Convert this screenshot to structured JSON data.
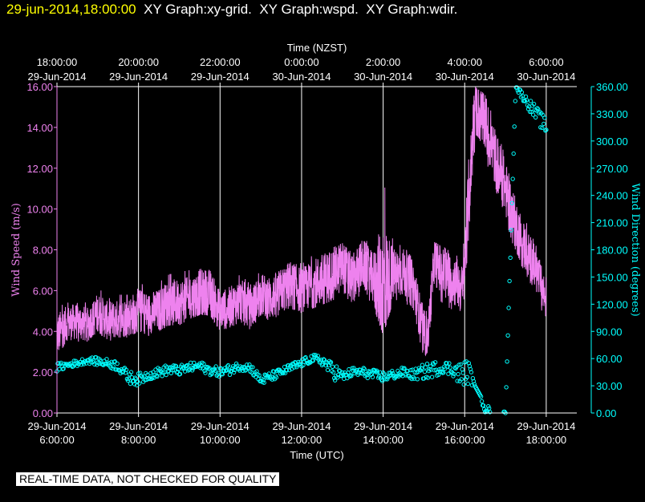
{
  "header": {
    "timestamp": "29-jun-2014,18:00:00",
    "graphs": [
      "XY Graph:xy-grid.",
      "XY Graph:wspd.",
      "XY Graph:wdir."
    ]
  },
  "footer_note": "REAL-TIME DATA, NOT CHECKED FOR QUALITY",
  "colors": {
    "background": "#000000",
    "wind_speed": "#ee82ee",
    "wind_direction": "#00ffff",
    "grid": "#ffffff",
    "header_timestamp": "#ffff00"
  },
  "chart_data": {
    "type": "line",
    "grid": true,
    "top_axis": {
      "label": "Time (NZST)",
      "ticks": [
        {
          "time": "18:00:00",
          "date": "29-Jun-2014"
        },
        {
          "time": "20:00:00",
          "date": "29-Jun-2014"
        },
        {
          "time": "22:00:00",
          "date": "29-Jun-2014"
        },
        {
          "time": "0:00:00",
          "date": "30-Jun-2014"
        },
        {
          "time": "2:00:00",
          "date": "30-Jun-2014"
        },
        {
          "time": "4:00:00",
          "date": "30-Jun-2014"
        },
        {
          "time": "6:00:00",
          "date": "30-Jun-2014"
        }
      ]
    },
    "bottom_axis": {
      "label": "Time (UTC)",
      "range_hours": [
        6,
        18.75
      ],
      "ticks": [
        {
          "hour": 6,
          "date": "29-Jun-2014",
          "time": "6:00:00"
        },
        {
          "hour": 8,
          "date": "29-Jun-2014",
          "time": "8:00:00"
        },
        {
          "hour": 10,
          "date": "29-Jun-2014",
          "time": "10:00:00"
        },
        {
          "hour": 12,
          "date": "29-Jun-2014",
          "time": "12:00:00"
        },
        {
          "hour": 14,
          "date": "29-Jun-2014",
          "time": "14:00:00"
        },
        {
          "hour": 16,
          "date": "29-Jun-2014",
          "time": "16:00:00"
        },
        {
          "hour": 18,
          "date": "29-Jun-2014",
          "time": "18:00:00"
        }
      ]
    },
    "left_axis": {
      "label": "Wind Speed (m/s)",
      "range": [
        0,
        16
      ],
      "ticks": [
        "0.00",
        "2.00",
        "4.00",
        "6.00",
        "8.00",
        "10.00",
        "12.00",
        "14.00",
        "16.00"
      ]
    },
    "right_axis": {
      "label": "Wind Direction (degrees)",
      "range": [
        0,
        360
      ],
      "ticks": [
        "0.00",
        "30.00",
        "60.00",
        "90.00",
        "120.00",
        "150.00",
        "180.00",
        "210.00",
        "240.00",
        "270.00",
        "300.00",
        "330.00",
        "360.00"
      ]
    },
    "series": [
      {
        "axis": "left",
        "style": "line",
        "x": [
          6.0,
          6.25,
          6.5,
          6.75,
          7.0,
          7.25,
          7.5,
          7.75,
          8.0,
          8.25,
          8.5,
          8.75,
          9.0,
          9.25,
          9.5,
          9.75,
          10.0,
          10.25,
          10.5,
          10.75,
          11.0,
          11.25,
          11.5,
          11.75,
          12.0,
          12.25,
          12.5,
          12.75,
          13.0,
          13.25,
          13.5,
          13.75,
          14.0,
          14.25,
          14.5,
          14.75,
          15.0,
          15.1,
          15.25,
          15.5,
          15.75,
          15.95,
          16.1,
          16.25,
          16.5,
          16.75,
          17.0,
          17.25,
          17.5,
          17.75,
          18.0
        ],
        "y": [
          3.8,
          4.4,
          4.5,
          4.3,
          4.9,
          4.5,
          4.6,
          4.7,
          5.0,
          4.9,
          5.0,
          5.4,
          5.4,
          5.6,
          5.8,
          5.9,
          5.0,
          5.2,
          5.5,
          5.1,
          5.8,
          5.6,
          6.0,
          6.3,
          6.0,
          6.3,
          6.5,
          6.8,
          7.2,
          6.6,
          7.3,
          6.6,
          6.0,
          6.8,
          6.9,
          6.2,
          3.8,
          3.8,
          7.5,
          6.8,
          6.5,
          6.0,
          10.5,
          15.0,
          14.2,
          12.5,
          11.0,
          9.2,
          8.0,
          7.0,
          5.5
        ],
        "min": [
          2.8,
          3.5,
          3.5,
          3.5,
          4.0,
          3.5,
          3.7,
          3.7,
          4.0,
          3.8,
          4.0,
          4.3,
          4.3,
          4.6,
          4.8,
          4.8,
          4.0,
          4.2,
          4.4,
          4.0,
          4.7,
          4.5,
          4.9,
          5.1,
          4.9,
          5.1,
          5.3,
          5.5,
          5.8,
          5.4,
          5.9,
          5.3,
          3.8,
          5.5,
          5.6,
          4.8,
          2.7,
          2.8,
          5.8,
          5.3,
          5.0,
          4.8,
          8.5,
          13.0,
          12.5,
          11.0,
          9.5,
          7.8,
          6.8,
          5.8,
          4.4
        ],
        "max": [
          5.2,
          5.4,
          5.5,
          5.4,
          6.2,
          5.6,
          5.8,
          5.8,
          6.5,
          6.0,
          6.4,
          6.8,
          6.9,
          7.0,
          7.6,
          7.4,
          6.2,
          6.4,
          6.8,
          6.3,
          7.0,
          6.9,
          7.3,
          7.8,
          7.3,
          7.7,
          8.2,
          8.3,
          8.6,
          8.0,
          8.7,
          8.0,
          11.6,
          8.3,
          8.2,
          7.5,
          5.0,
          5.0,
          8.4,
          8.1,
          7.8,
          7.5,
          13.0,
          16.0,
          15.6,
          14.2,
          12.5,
          10.7,
          9.4,
          8.2,
          6.6
        ]
      },
      {
        "axis": "right",
        "style": "markers",
        "x": [
          6.0,
          6.25,
          6.5,
          6.75,
          7.0,
          7.25,
          7.5,
          7.75,
          8.0,
          8.25,
          8.5,
          8.75,
          9.0,
          9.25,
          9.5,
          9.75,
          10.0,
          10.25,
          10.5,
          10.75,
          11.0,
          11.25,
          11.5,
          11.75,
          12.0,
          12.25,
          12.5,
          12.75,
          13.0,
          13.25,
          13.5,
          13.75,
          14.0,
          14.25,
          14.5,
          14.75,
          15.0,
          15.25,
          15.5,
          15.75,
          15.9,
          16.0,
          16.1,
          16.25,
          16.5,
          16.75,
          17.0,
          17.25,
          17.5,
          17.75,
          18.0
        ],
        "y": [
          50,
          53,
          55,
          58,
          57,
          55,
          52,
          40,
          37,
          42,
          45,
          48,
          47,
          50,
          52,
          47,
          45,
          48,
          52,
          50,
          36,
          40,
          45,
          50,
          55,
          60,
          58,
          48,
          40,
          45,
          45,
          42,
          40,
          42,
          45,
          42,
          45,
          48,
          50,
          48,
          40,
          45,
          50,
          44,
          5,
          2,
          0,
          360,
          345,
          330,
          315
        ],
        "min": [
          45,
          50,
          52,
          55,
          52,
          50,
          45,
          28,
          30,
          36,
          40,
          42,
          42,
          45,
          47,
          42,
          40,
          42,
          47,
          45,
          30,
          35,
          40,
          45,
          50,
          55,
          50,
          30,
          35,
          40,
          40,
          37,
          35,
          38,
          40,
          37,
          38,
          40,
          45,
          40,
          18,
          30,
          5,
          5,
          0,
          0,
          0,
          355,
          340,
          320,
          305
        ],
        "max": [
          56,
          58,
          60,
          62,
          62,
          60,
          58,
          45,
          45,
          48,
          52,
          55,
          54,
          57,
          58,
          55,
          52,
          55,
          58,
          56,
          42,
          47,
          50,
          56,
          60,
          65,
          63,
          55,
          48,
          52,
          52,
          50,
          48,
          50,
          52,
          50,
          58,
          60,
          62,
          58,
          55,
          58,
          55,
          30,
          10,
          5,
          3,
          360,
          352,
          340,
          325
        ]
      }
    ]
  }
}
